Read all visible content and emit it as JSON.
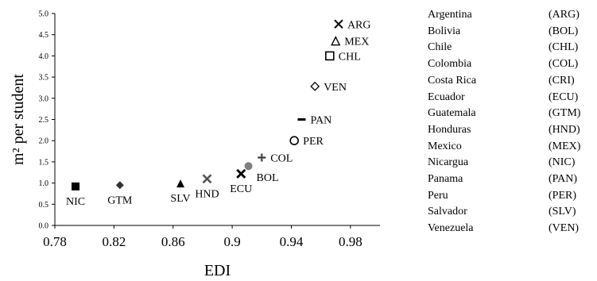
{
  "chart_data": {
    "type": "scatter",
    "xlabel": "EDI",
    "ylabel": "m² per student",
    "xlim": [
      0.78,
      1.0
    ],
    "ylim": [
      0.0,
      5.0
    ],
    "xticks": [
      "0.78",
      "0.82",
      "0.86",
      "0.9",
      "0.94",
      "0.98"
    ],
    "xtick_values": [
      0.78,
      0.82,
      0.86,
      0.9,
      0.94,
      0.98
    ],
    "yticks": [
      "0.0",
      "0.5",
      "1.0",
      "1.5",
      "2.0",
      "2.5",
      "3.0",
      "3.5",
      "4.0",
      "4.5",
      "5.0"
    ],
    "ytick_values": [
      0.0,
      0.5,
      1.0,
      1.5,
      2.0,
      2.5,
      3.0,
      3.5,
      4.0,
      4.5,
      5.0
    ],
    "grid": false,
    "points": [
      {
        "label": "NIC",
        "x": 0.794,
        "y": 0.92,
        "marker": "filled-square",
        "label_pos": "below"
      },
      {
        "label": "GTM",
        "x": 0.824,
        "y": 0.95,
        "marker": "filled-diamond",
        "label_pos": "below"
      },
      {
        "label": "SLV",
        "x": 0.865,
        "y": 0.99,
        "marker": "filled-triangle",
        "label_pos": "below"
      },
      {
        "label": "HND",
        "x": 0.883,
        "y": 1.1,
        "marker": "x-gray",
        "label_pos": "below"
      },
      {
        "label": "ECU",
        "x": 0.906,
        "y": 1.22,
        "marker": "x-bold",
        "label_pos": "below"
      },
      {
        "label": "BOL",
        "x": 0.911,
        "y": 1.4,
        "marker": "filled-circle-gray",
        "label_pos": "right-below"
      },
      {
        "label": "COL",
        "x": 0.92,
        "y": 1.6,
        "marker": "plus-gray",
        "label_pos": "right"
      },
      {
        "label": "PER",
        "x": 0.942,
        "y": 2.0,
        "marker": "open-circle",
        "label_pos": "right"
      },
      {
        "label": "PAN",
        "x": 0.947,
        "y": 2.5,
        "marker": "dash",
        "label_pos": "right"
      },
      {
        "label": "VEN",
        "x": 0.956,
        "y": 3.28,
        "marker": "open-diamond",
        "label_pos": "right"
      },
      {
        "label": "CHL",
        "x": 0.966,
        "y": 4.0,
        "marker": "open-square",
        "label_pos": "right"
      },
      {
        "label": "MEX",
        "x": 0.97,
        "y": 4.35,
        "marker": "open-triangle",
        "label_pos": "right"
      },
      {
        "label": "ARG",
        "x": 0.972,
        "y": 4.75,
        "marker": "x",
        "label_pos": "right"
      }
    ]
  },
  "legend": [
    {
      "name": "Argentina",
      "code": "(ARG)"
    },
    {
      "name": "Bolivia",
      "code": "(BOL)"
    },
    {
      "name": "Chile",
      "code": "(CHL)"
    },
    {
      "name": "Colombia",
      "code": "(COL)"
    },
    {
      "name": "Costa Rica",
      "code": "(CRI)"
    },
    {
      "name": "Ecuador",
      "code": "(ECU)"
    },
    {
      "name": "Guatemala",
      "code": "(GTM)"
    },
    {
      "name": "Honduras",
      "code": "(HND)"
    },
    {
      "name": "Mexico",
      "code": "(MEX)"
    },
    {
      "name": "Nicargua",
      "code": "(NIC)"
    },
    {
      "name": "Panama",
      "code": "(PAN)"
    },
    {
      "name": "Peru",
      "code": "(PER)"
    },
    {
      "name": "Salvador",
      "code": "(SLV)"
    },
    {
      "name": "Venezuela",
      "code": "(VEN)"
    }
  ]
}
